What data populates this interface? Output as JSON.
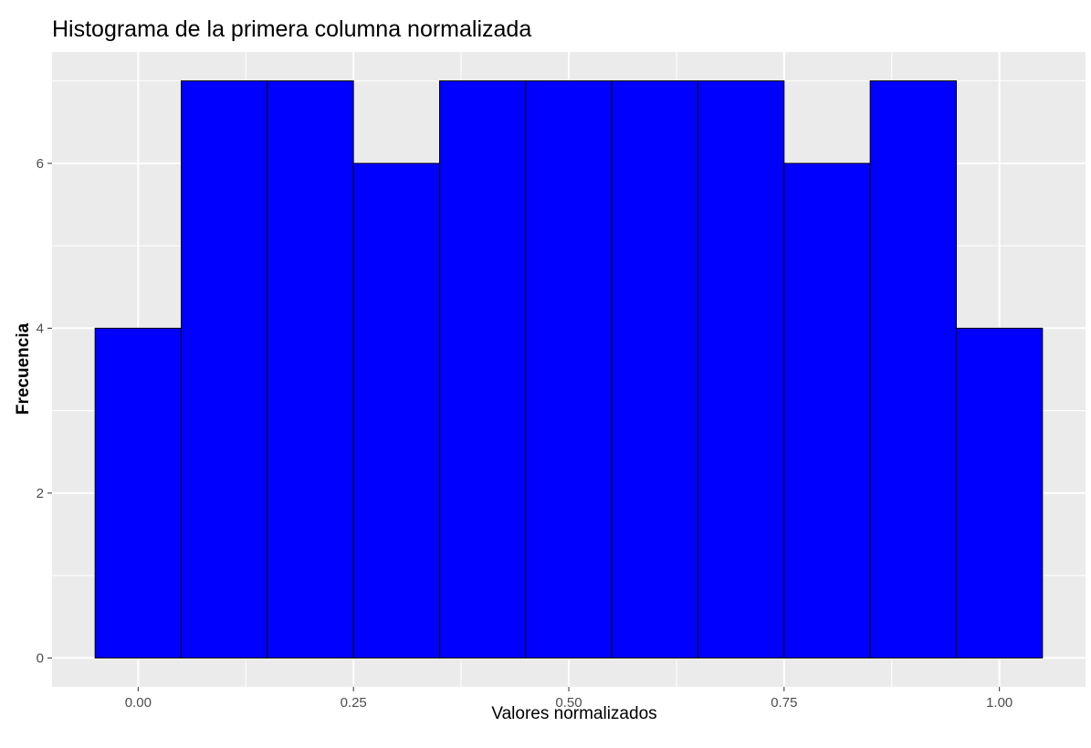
{
  "chart_data": {
    "type": "bar",
    "title": "Histograma de la primera columna normalizada",
    "xlabel": "Valores normalizados",
    "ylabel": "Frecuencia",
    "bin_width": 0.1,
    "bin_centers": [
      0.0,
      0.1,
      0.2,
      0.3,
      0.4,
      0.5,
      0.6,
      0.7,
      0.8,
      0.9,
      1.0
    ],
    "values": [
      4,
      7,
      7,
      6,
      7,
      7,
      7,
      7,
      6,
      7,
      4
    ],
    "xlim": [
      -0.1,
      1.1
    ],
    "ylim": [
      -0.35,
      7.35
    ],
    "x_ticks": [
      0,
      0.25,
      0.5,
      0.75,
      1
    ],
    "x_tick_labels": [
      "0.00",
      "0.25",
      "0.50",
      "0.75",
      "1.00"
    ],
    "y_ticks": [
      0,
      2,
      4,
      6
    ],
    "y_tick_labels": [
      "0",
      "2",
      "4",
      "6"
    ],
    "grid": true,
    "legend": "none",
    "colors": {
      "bar_fill": "#0000FF",
      "bar_outline": "#000000",
      "panel_background": "#EBEBEB",
      "grid_line": "#FFFFFF",
      "tick_label": "#4D4D4D"
    }
  }
}
